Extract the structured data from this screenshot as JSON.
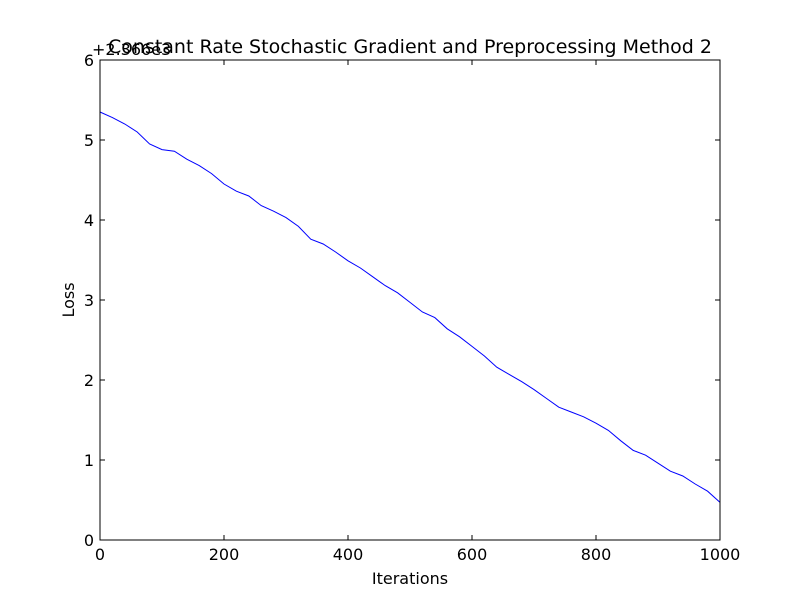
{
  "chart_data": {
    "type": "line",
    "title": "Constant Rate Stochastic Gradient and Preprocessing Method 2",
    "xlabel": "Iterations",
    "ylabel": "Loss",
    "y_offset_label": "+2.366e3",
    "xlim": [
      0,
      1000
    ],
    "ylim": [
      0,
      6
    ],
    "x_ticks": [
      "0",
      "200",
      "400",
      "600",
      "800",
      "1000"
    ],
    "y_ticks": [
      "0",
      "1",
      "2",
      "3",
      "4",
      "5",
      "6"
    ],
    "grid": false,
    "line_color": "#0000ff",
    "series": [
      {
        "x": [
          0,
          20,
          40,
          60,
          80,
          100,
          120,
          140,
          160,
          180,
          200,
          220,
          240,
          260,
          280,
          300,
          320,
          340,
          360,
          380,
          400,
          420,
          440,
          460,
          480,
          500,
          520,
          540,
          560,
          580,
          600,
          620,
          640,
          660,
          680,
          700,
          720,
          740,
          760,
          780,
          800,
          820,
          840,
          860,
          880,
          900,
          920,
          940,
          960,
          980,
          1000
        ],
        "y": [
          5.35,
          5.28,
          5.2,
          5.1,
          4.95,
          4.88,
          4.86,
          4.76,
          4.68,
          4.58,
          4.45,
          4.36,
          4.3,
          4.18,
          4.11,
          4.03,
          3.92,
          3.76,
          3.7,
          3.6,
          3.49,
          3.4,
          3.29,
          3.18,
          3.09,
          2.97,
          2.85,
          2.78,
          2.64,
          2.54,
          2.42,
          2.3,
          2.16,
          2.07,
          1.98,
          1.88,
          1.77,
          1.66,
          1.6,
          1.54,
          1.46,
          1.37,
          1.24,
          1.12,
          1.06,
          0.96,
          0.86,
          0.8,
          0.7,
          0.61,
          0.47
        ]
      }
    ]
  }
}
